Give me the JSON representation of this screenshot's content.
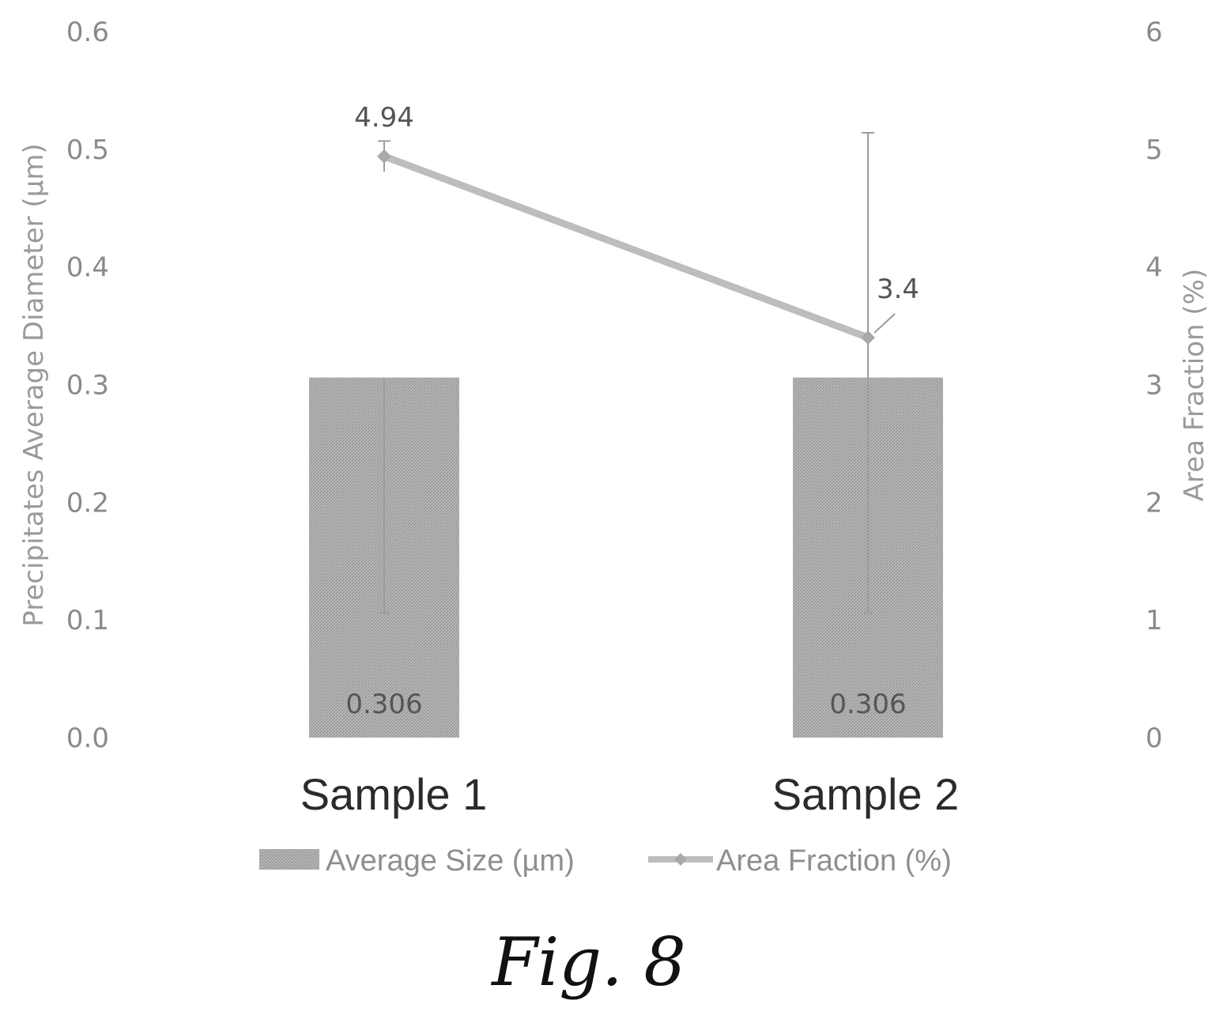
{
  "chart_data": {
    "type": "bar",
    "categories": [
      "Sample 1",
      "Sample 2"
    ],
    "series": [
      {
        "name": "Average Size (µm)",
        "type": "bar",
        "axis": "left",
        "values": [
          0.306,
          0.306
        ],
        "data_labels": [
          "0.306",
          "0.306"
        ],
        "error_plus": [
          0.2,
          0.2
        ],
        "error_minus": [
          0.2,
          0.2
        ]
      },
      {
        "name": "Area Fraction (%)",
        "type": "line",
        "axis": "right",
        "values": [
          4.94,
          3.4
        ],
        "data_labels": [
          "4.94",
          "3.4"
        ],
        "error_plus": [
          0.13,
          1.74
        ],
        "error_minus": [
          0.13,
          1.74
        ]
      }
    ],
    "ylabel": "Precipitates Average Diameter (µm)",
    "ylabel_right": "Area Fraction (%)",
    "ylim": [
      0,
      0.6
    ],
    "yticks": [
      "0.0",
      "0.1",
      "0.2",
      "0.3",
      "0.4",
      "0.5",
      "0.6"
    ],
    "ylim_right": [
      0,
      6
    ],
    "yticks_right": [
      "0",
      "1",
      "2",
      "3",
      "4",
      "5",
      "6"
    ],
    "grid": false,
    "legend_position": "bottom",
    "colors": {
      "bar": "#b3b3b3",
      "line": "#bdbdbd",
      "marker": "#a9a9a9",
      "error": "#9c9c9c"
    }
  },
  "caption": "Fig. 8"
}
